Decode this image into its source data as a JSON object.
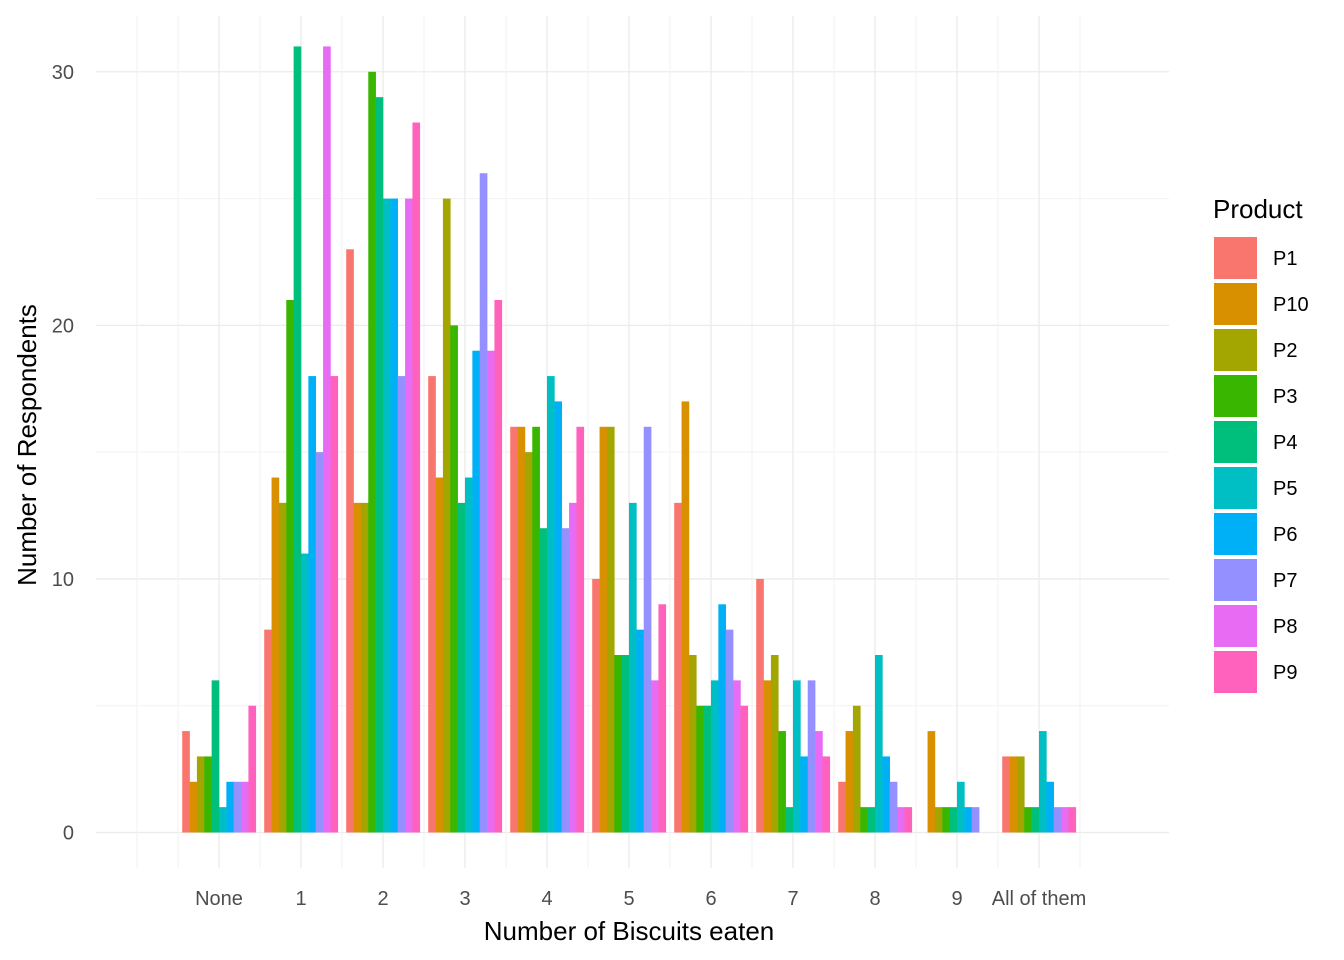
{
  "chart_data": {
    "type": "bar",
    "xlabel": "Number of Biscuits eaten",
    "ylabel": "Number of Respondents",
    "categories": [
      "None",
      "1",
      "2",
      "3",
      "4",
      "5",
      "6",
      "7",
      "8",
      "9",
      "All of them"
    ],
    "y_ticks": [
      0,
      10,
      20,
      30
    ],
    "ylim": [
      -1.4,
      32.2
    ],
    "grid": true,
    "legend": {
      "title": "Product",
      "position": "right"
    },
    "series": [
      {
        "name": "P1",
        "color": "#F8766D",
        "values": [
          4,
          8,
          23,
          18,
          16,
          10,
          13,
          10,
          2,
          0,
          3
        ]
      },
      {
        "name": "P10",
        "color": "#D89000",
        "values": [
          2,
          14,
          13,
          14,
          16,
          16,
          17,
          6,
          4,
          4,
          3
        ]
      },
      {
        "name": "P2",
        "color": "#A3A500",
        "values": [
          3,
          13,
          13,
          25,
          15,
          16,
          7,
          7,
          5,
          1,
          3
        ]
      },
      {
        "name": "P3",
        "color": "#39B600",
        "values": [
          3,
          21,
          30,
          20,
          16,
          7,
          5,
          4,
          1,
          1,
          1
        ]
      },
      {
        "name": "P4",
        "color": "#00BF7D",
        "values": [
          6,
          31,
          29,
          13,
          12,
          7,
          5,
          1,
          1,
          1,
          1
        ]
      },
      {
        "name": "P5",
        "color": "#00BFC4",
        "values": [
          1,
          11,
          25,
          14,
          18,
          13,
          6,
          6,
          7,
          2,
          4
        ]
      },
      {
        "name": "P6",
        "color": "#00B0F6",
        "values": [
          2,
          18,
          25,
          19,
          17,
          8,
          9,
          3,
          3,
          1,
          2
        ]
      },
      {
        "name": "P7",
        "color": "#9590FF",
        "values": [
          2,
          15,
          18,
          26,
          12,
          16,
          8,
          6,
          2,
          1,
          1
        ]
      },
      {
        "name": "P8",
        "color": "#E76BF3",
        "values": [
          2,
          31,
          25,
          19,
          13,
          6,
          6,
          4,
          1,
          0,
          1
        ]
      },
      {
        "name": "P9",
        "color": "#FF62BC",
        "values": [
          5,
          18,
          28,
          21,
          16,
          9,
          5,
          3,
          1,
          0,
          1
        ]
      }
    ]
  }
}
